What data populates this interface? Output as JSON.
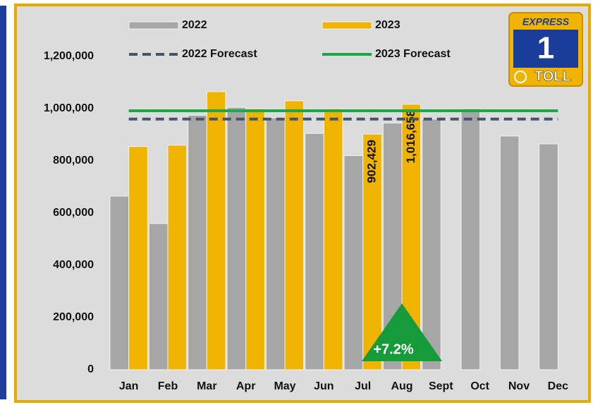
{
  "chart_data": {
    "type": "bar",
    "categories": [
      "Jan",
      "Feb",
      "Mar",
      "Apr",
      "May",
      "Jun",
      "Jul",
      "Aug",
      "Sept",
      "Oct",
      "Nov",
      "Dec"
    ],
    "series": [
      {
        "name": "2022",
        "color": "#a6a6a6",
        "values": [
          665000,
          560000,
          975000,
          1005000,
          965000,
          905000,
          820000,
          945000,
          960000,
          1000000,
          895000,
          865000
        ]
      },
      {
        "name": "2023",
        "color": "#f0b400",
        "values": [
          855000,
          860000,
          1065000,
          1000000,
          1030000,
          1000000,
          902429,
          1016658,
          null,
          null,
          null,
          null
        ],
        "value_labels": [
          null,
          null,
          null,
          null,
          null,
          null,
          "902,429",
          "1,016,658",
          null,
          null,
          null,
          null
        ]
      },
      {
        "name": "2022 Forecast",
        "type": "line",
        "dash": true,
        "color": "#44546a",
        "values": [
          960000,
          960000,
          960000,
          960000,
          960000,
          960000,
          960000,
          960000,
          960000,
          960000,
          960000,
          960000
        ]
      },
      {
        "name": "2023 Forecast",
        "type": "line",
        "color": "#1ea64a",
        "values": [
          992000,
          992000,
          992000,
          992000,
          992000,
          992000,
          992000,
          992000,
          992000,
          992000,
          992000,
          992000
        ]
      }
    ],
    "ylim": [
      0,
      1400000
    ],
    "yticks": [
      0,
      {
        "value": 200000,
        "label": "200,000"
      },
      {
        "value": 400000,
        "label": "400,000"
      },
      {
        "value": 600000,
        "label": "600,000"
      },
      {
        "value": 800000,
        "label": "800,000"
      },
      {
        "value": 1000000,
        "label": "1,000,000"
      },
      {
        "value": 1200000,
        "label": "1,200,000"
      }
    ],
    "annotation": "+7.2%",
    "legend": "top"
  },
  "logo": {
    "top": "EXPRESS",
    "number": "1",
    "bottom": "TOLL"
  }
}
